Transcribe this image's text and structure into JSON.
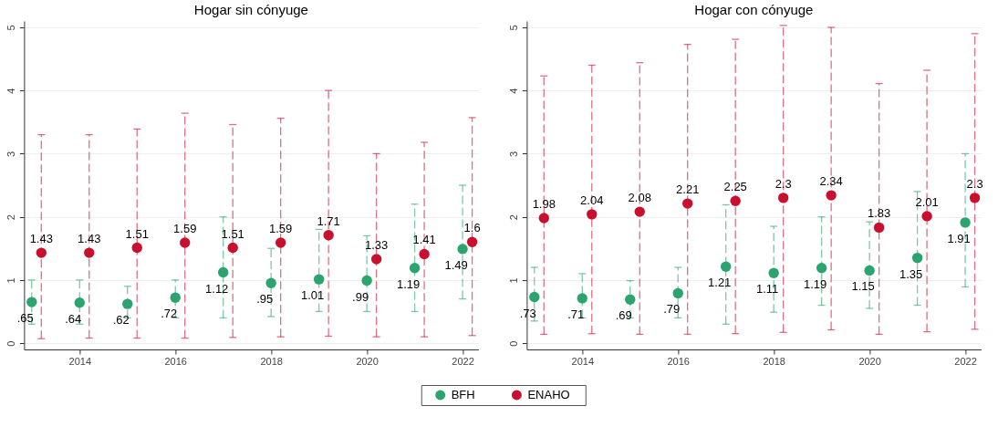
{
  "chart_data": [
    {
      "type": "scatter",
      "title": "Hogar sin cónyuge",
      "xlim": [
        2012.84,
        2022.33
      ],
      "xticks": [
        2014,
        2016,
        2018,
        2020,
        2022
      ],
      "ylim": [
        -0.1,
        5.1
      ],
      "yticks": [
        0,
        1,
        2,
        3,
        4,
        5
      ],
      "grid": "y",
      "legend": "bottom",
      "marker": "circle",
      "line_style": "dashed",
      "series": [
        {
          "name": "BFH",
          "color": "#2ca46e",
          "x": [
            2013,
            2014,
            2015,
            2016,
            2017,
            2018,
            2019,
            2020,
            2021,
            2022
          ],
          "values": [
            0.65,
            0.64,
            0.62,
            0.72,
            1.12,
            0.95,
            1.01,
            0.99,
            1.19,
            1.49
          ],
          "value_labels": [
            ".65",
            ".64",
            ".62",
            ".72",
            "1.12",
            ".95",
            "1.01",
            ".99",
            "1.19",
            "1.49"
          ],
          "errors": [
            [
              0.3,
              1.0
            ],
            [
              0.3,
              1.0
            ],
            [
              0.4,
              0.9
            ],
            [
              0.4,
              1.0
            ],
            [
              0.4,
              2.0
            ],
            [
              0.42,
              1.5
            ],
            [
              0.5,
              1.8
            ],
            [
              0.5,
              1.7
            ],
            [
              0.5,
              2.2
            ],
            [
              0.7,
              2.5
            ]
          ]
        },
        {
          "name": "ENAHO",
          "color": "#c8102e",
          "x": [
            2013.2,
            2014.2,
            2015.2,
            2016.2,
            2017.2,
            2018.2,
            2019.2,
            2020.2,
            2021.2,
            2022.2
          ],
          "values": [
            1.43,
            1.43,
            1.51,
            1.59,
            1.51,
            1.59,
            1.71,
            1.33,
            1.41,
            1.6
          ],
          "value_labels": [
            "1.43",
            "1.43",
            "1.51",
            "1.59",
            "1.51",
            "1.59",
            "1.71",
            "1.33",
            "1.41",
            "1.6"
          ],
          "errors": [
            [
              0.07,
              3.3
            ],
            [
              0.08,
              3.3
            ],
            [
              0.08,
              3.39
            ],
            [
              0.08,
              3.64
            ],
            [
              0.09,
              3.46
            ],
            [
              0.1,
              3.56
            ],
            [
              0.11,
              4.0
            ],
            [
              0.1,
              3.0
            ],
            [
              0.1,
              3.18
            ],
            [
              0.12,
              3.57
            ]
          ]
        }
      ]
    },
    {
      "type": "scatter",
      "title": "Hogar con cónyuge",
      "xlim": [
        2012.84,
        2022.33
      ],
      "xticks": [
        2014,
        2016,
        2018,
        2020,
        2022
      ],
      "ylim": [
        -0.1,
        5.1
      ],
      "yticks": [
        0,
        1,
        2,
        3,
        4,
        5
      ],
      "grid": "y",
      "legend": "bottom",
      "marker": "circle",
      "line_style": "dashed",
      "series": [
        {
          "name": "BFH",
          "color": "#2ca46e",
          "x": [
            2013,
            2014,
            2015,
            2016,
            2017,
            2018,
            2019,
            2020,
            2021,
            2022
          ],
          "values": [
            0.73,
            0.71,
            0.69,
            0.79,
            1.21,
            1.11,
            1.19,
            1.15,
            1.35,
            1.91
          ],
          "value_labels": [
            ".73",
            ".71",
            ".69",
            ".79",
            "1.21",
            "1.11",
            "1.19",
            "1.15",
            "1.35",
            "1.91"
          ],
          "errors": [
            [
              0.35,
              1.2
            ],
            [
              0.4,
              1.1
            ],
            [
              0.4,
              0.99
            ],
            [
              0.4,
              1.2
            ],
            [
              0.3,
              2.19
            ],
            [
              0.49,
              1.85
            ],
            [
              0.6,
              2.0
            ],
            [
              0.55,
              1.92
            ],
            [
              0.6,
              2.4
            ],
            [
              0.89,
              3.0
            ]
          ]
        },
        {
          "name": "ENAHO",
          "color": "#c8102e",
          "x": [
            2013.2,
            2014.2,
            2015.2,
            2016.2,
            2017.2,
            2018.2,
            2019.2,
            2020.2,
            2021.2,
            2022.2
          ],
          "values": [
            1.98,
            2.04,
            2.08,
            2.21,
            2.25,
            2.3,
            2.34,
            1.83,
            2.01,
            2.3
          ],
          "value_labels": [
            "1.98",
            "2.04",
            "2.08",
            "2.21",
            "2.25",
            "2.3",
            "2.34",
            "1.83",
            "2.01",
            "2.3"
          ],
          "errors": [
            [
              0.14,
              4.23
            ],
            [
              0.15,
              4.4
            ],
            [
              0.14,
              4.44
            ],
            [
              0.14,
              4.73
            ],
            [
              0.15,
              4.81
            ],
            [
              0.17,
              5.03
            ],
            [
              0.21,
              5.0
            ],
            [
              0.14,
              4.11
            ],
            [
              0.18,
              4.32
            ],
            [
              0.22,
              4.9
            ]
          ]
        }
      ]
    }
  ]
}
